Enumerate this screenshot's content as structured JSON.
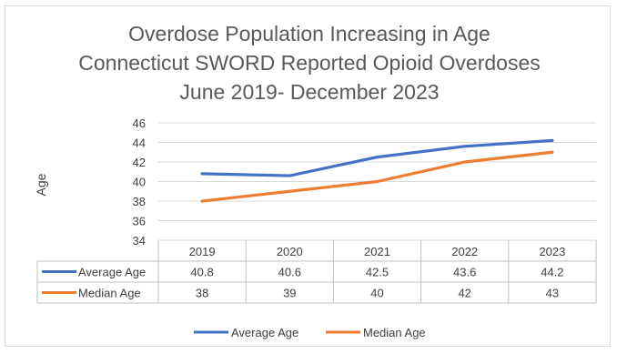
{
  "chart_data": {
    "type": "line",
    "title": [
      "Overdose Population Increasing in Age",
      "Connecticut SWORD Reported Opioid Overdoses",
      "June 2019- December 2023"
    ],
    "ylabel": "Age",
    "xlabel": "",
    "ylim": [
      34,
      46
    ],
    "yticks": [
      34,
      36,
      38,
      40,
      42,
      44,
      46
    ],
    "grid": true,
    "legend_position": "bottom",
    "categories": [
      "2019",
      "2020",
      "2021",
      "2022",
      "2023"
    ],
    "series": [
      {
        "name": "Average Age",
        "color": "#4472C4",
        "values": [
          40.8,
          40.6,
          42.5,
          43.6,
          44.2
        ]
      },
      {
        "name": "Median Age",
        "color": "#ED7D31",
        "values": [
          38,
          39,
          40,
          42,
          43
        ]
      }
    ],
    "data_table": true
  }
}
